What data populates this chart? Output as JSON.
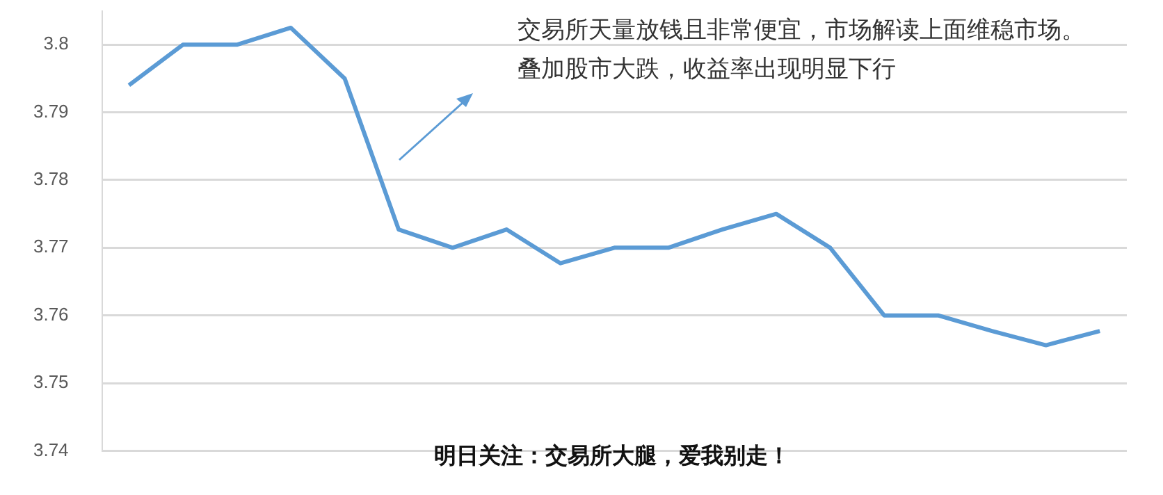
{
  "chart_data": {
    "type": "line",
    "categories": [
      null,
      null,
      null,
      null,
      null,
      null,
      null,
      null,
      null,
      null,
      null,
      null,
      null,
      null,
      null,
      null,
      null,
      null,
      null
    ],
    "values": [
      3.794,
      3.8,
      3.8,
      3.8025,
      3.795,
      3.7727,
      3.77,
      3.7727,
      3.7677,
      3.77,
      3.77,
      3.7727,
      3.775,
      3.77,
      3.76,
      3.76,
      3.7577,
      3.7556,
      3.7577
    ],
    "color": "#5b9bd5",
    "ylim": [
      3.74,
      3.805
    ],
    "yticks": [
      3.74,
      3.75,
      3.76,
      3.77,
      3.78,
      3.79,
      3.8
    ],
    "grid": "y",
    "tick_labels": "y",
    "marker": "none",
    "annotations": [
      "交易所天量放钱且非常便宜，市场解读上面维稳市场。叠加股市大跌，收益率出现明显下行",
      "明日关注：交易所大腿，爱我别走！"
    ]
  }
}
